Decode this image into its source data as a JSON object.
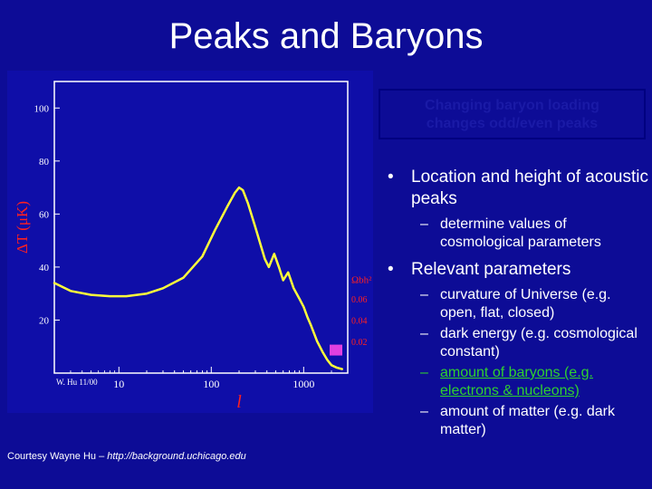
{
  "slide": {
    "title": "Peaks and Baryons",
    "box_text": [
      "Changing baryon loading",
      "changes odd/even peaks"
    ],
    "bullets": [
      {
        "text": "Location and height of acoustic peaks",
        "sub": [
          {
            "text": "determine values of cosmological parameters",
            "highlight": false
          }
        ]
      },
      {
        "text": "Relevant parameters",
        "sub": [
          {
            "text": "curvature of Universe (e.g. open, flat, closed)",
            "highlight": false
          },
          {
            "text": "dark energy (e.g. cosmological constant)",
            "highlight": false
          },
          {
            "text": "amount of baryons (e.g. electrons & nucleons)",
            "highlight": true
          },
          {
            "text": "amount of matter (e.g. dark matter)",
            "highlight": false
          }
        ]
      }
    ],
    "credit_prefix": "Courtesy Wayne Hu – ",
    "credit_link": "http://background.uchicago.edu",
    "bullet_glyph": "•",
    "dash_glyph": "–"
  },
  "chart_data": {
    "type": "line",
    "title": "",
    "xlabel": "l",
    "ylabel": "ΔT (μK)",
    "xscale": "log",
    "xlim": [
      2,
      3000
    ],
    "ylim": [
      0,
      110
    ],
    "x_ticks": [
      "10",
      "100",
      "1000"
    ],
    "y_ticks": [
      "20",
      "40",
      "60",
      "80",
      "100"
    ],
    "secondary_axis": {
      "label": "Ωbh²",
      "ticks": [
        "0.06",
        "0.04",
        "0.02"
      ],
      "indicator_value": 0.01,
      "indicator_color": "#e040e0"
    },
    "plot_label": "W. Hu 11/00",
    "colors": {
      "panel": "#0f0ea8",
      "frame": "#ffffff",
      "curve": "#ffff3a",
      "axis_text": "#ff2020",
      "tick_text": "#ffffff"
    },
    "series": [
      {
        "x": [
          2,
          3,
          5,
          8,
          12,
          20,
          30,
          50,
          80,
          110,
          150,
          180,
          200,
          220,
          250,
          300,
          380,
          420,
          480,
          540,
          600,
          680,
          780,
          900,
          1000,
          1100,
          1200,
          1400,
          1600,
          1800,
          2000,
          2300,
          2600
        ],
        "y": [
          34,
          31,
          29.5,
          29,
          29,
          30,
          32,
          36,
          44,
          54,
          63,
          68,
          70,
          69,
          64,
          55,
          43,
          40,
          45,
          40,
          35,
          38,
          32,
          28,
          25,
          21,
          18,
          12,
          8,
          5,
          3,
          2,
          1.5
        ]
      }
    ]
  }
}
